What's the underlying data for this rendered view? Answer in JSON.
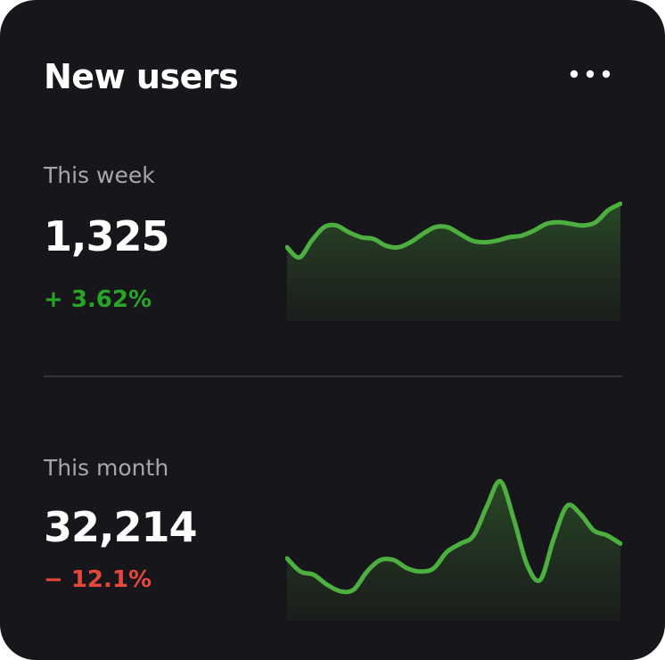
{
  "card": {
    "title": "New users",
    "more_icon": "more-horizontal-icon"
  },
  "sections": [
    {
      "label": "This week",
      "value": "1,325",
      "change": "+ 3.62%",
      "trend": "up",
      "trend_color": "#27a527"
    },
    {
      "label": "This month",
      "value": "32,214",
      "change": "− 12.1%",
      "trend": "down",
      "trend_color": "#e5483b"
    }
  ],
  "colors": {
    "card_background": "#17171b",
    "title": "#ffffff",
    "label": "#a6a6ab",
    "sparkline_stroke": "#4caf3f",
    "divider": "#34343a"
  },
  "chart_data": [
    {
      "type": "area",
      "title": "",
      "series": [
        {
          "values": [
            44,
            38,
            48,
            56,
            57,
            53,
            50,
            49,
            45,
            44,
            47,
            52,
            56,
            56,
            52,
            48,
            47,
            48,
            50,
            51,
            54,
            58,
            59,
            58,
            57,
            59,
            66,
            70
          ]
        }
      ],
      "ylim": [
        0,
        100
      ],
      "grid": false,
      "legend": "none"
    },
    {
      "type": "area",
      "title": "",
      "series": [
        {
          "values": [
            38,
            30,
            28,
            22,
            18,
            19,
            30,
            37,
            37,
            32,
            30,
            32,
            42,
            47,
            52,
            70,
            85,
            62,
            34,
            25,
            50,
            70,
            65,
            55,
            52,
            47
          ]
        }
      ],
      "ylim": [
        0,
        100
      ],
      "grid": false,
      "legend": "none"
    }
  ]
}
